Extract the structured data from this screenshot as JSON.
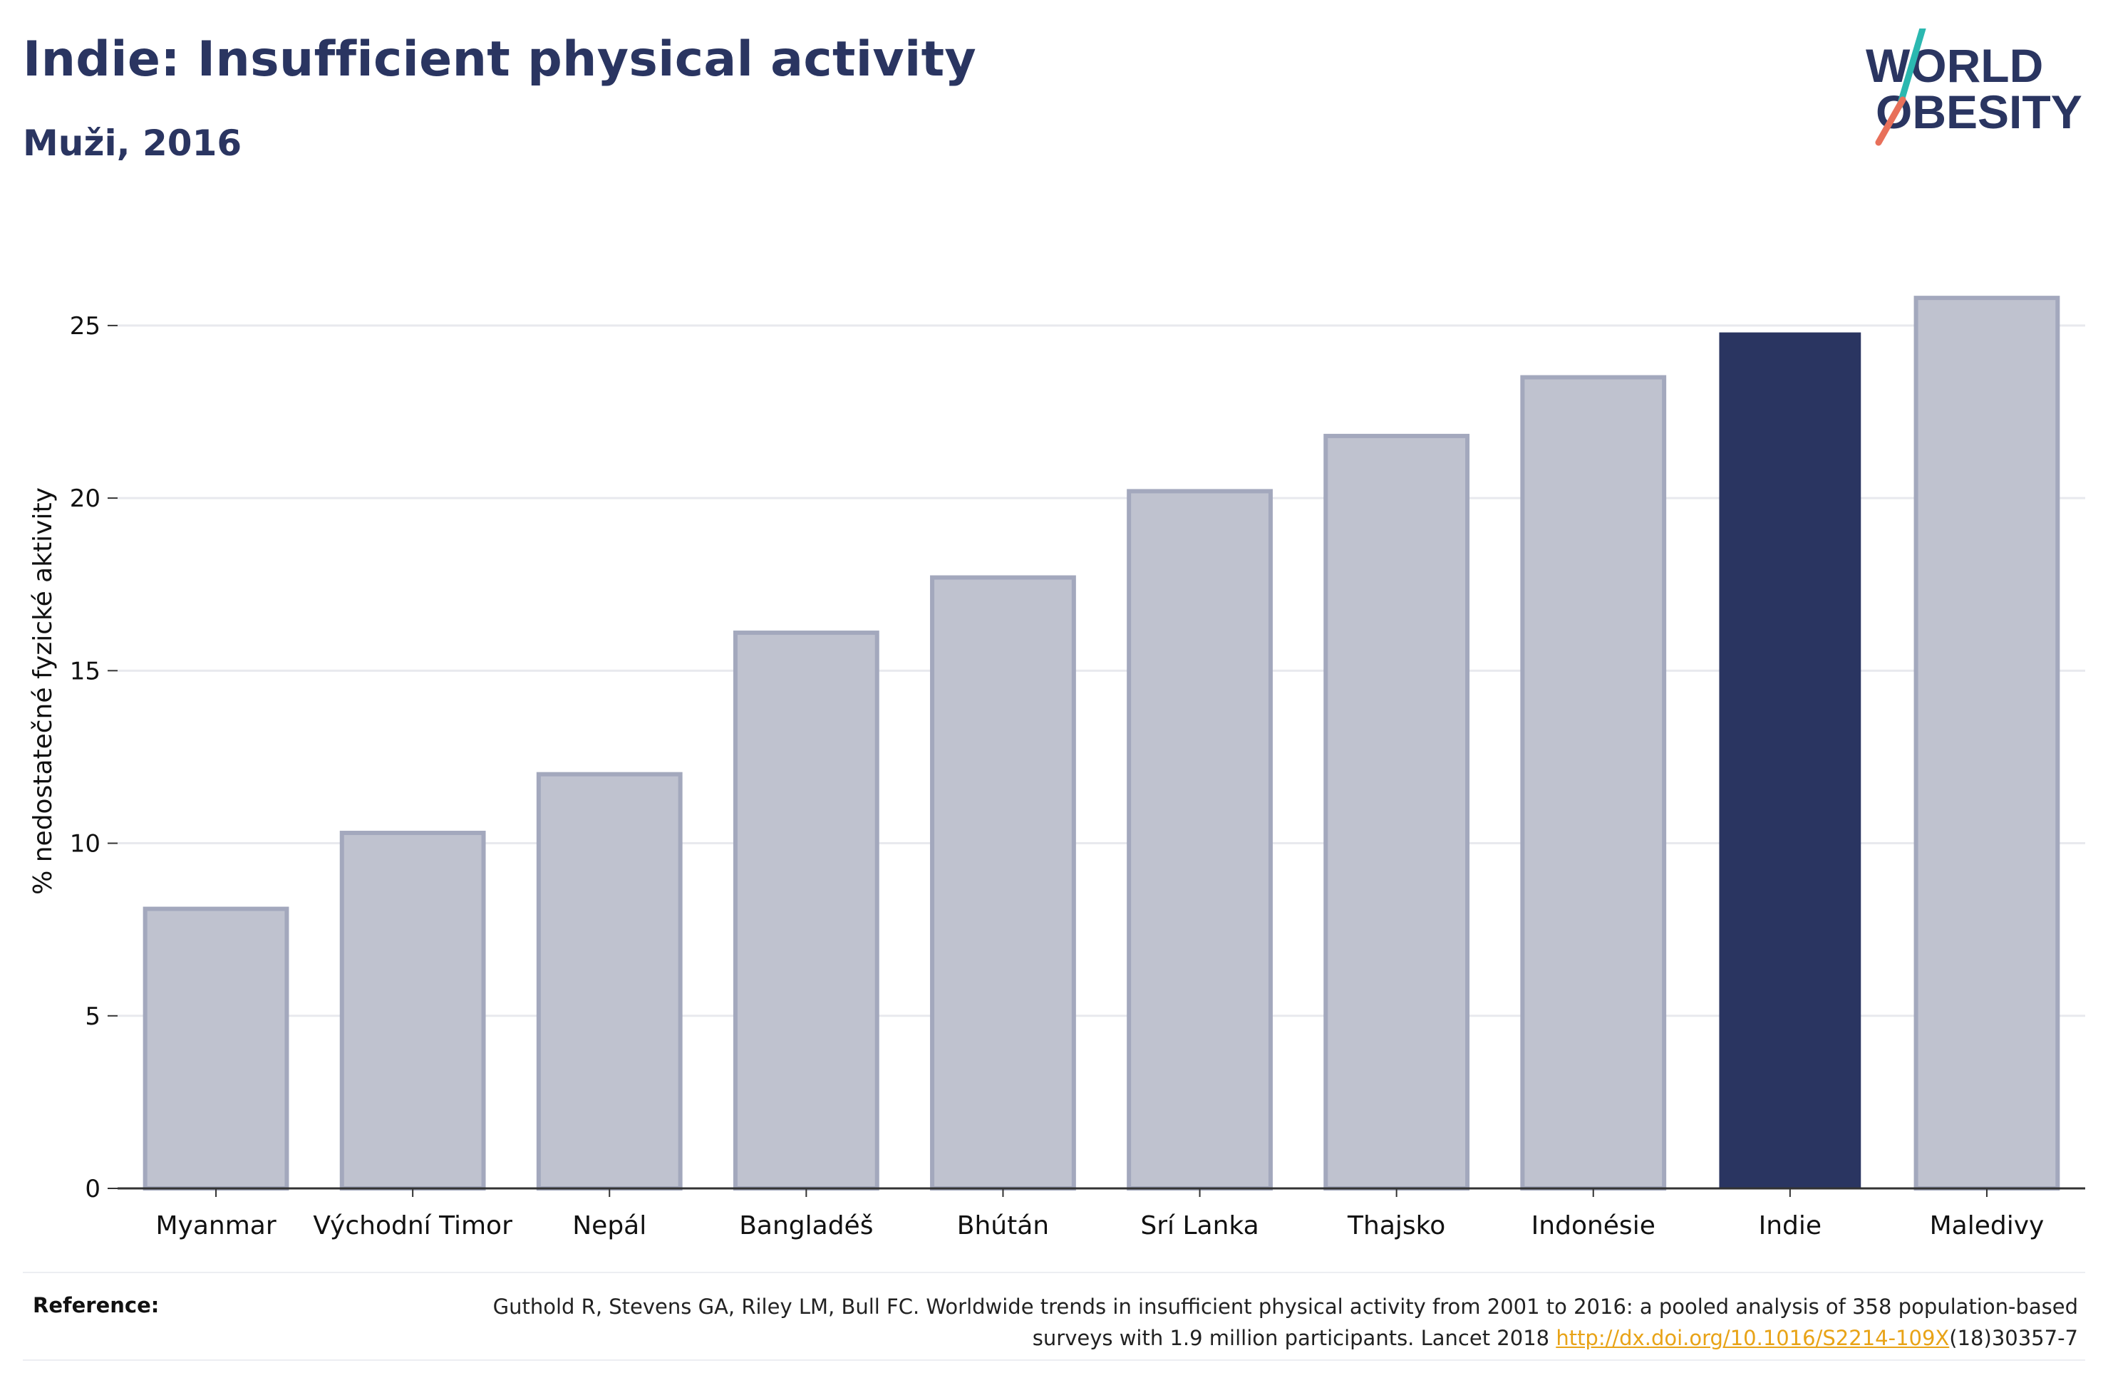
{
  "header": {
    "title": "Indie: Insufficient physical activity",
    "subtitle": "Muži, 2016"
  },
  "logo": {
    "line1": "WORLD",
    "line2": "OBESITY",
    "colors": {
      "text": "#2a3561",
      "slash_top": "#2bb8b0",
      "slash_bottom": "#e8705a"
    }
  },
  "chart_data": {
    "type": "bar",
    "title": "Indie: Insufficient physical activity",
    "subtitle": "Muži, 2016",
    "xlabel": "",
    "ylabel": "% nedostatečné fyzické aktivity",
    "ylim": [
      0,
      27
    ],
    "yticks": [
      0,
      5,
      10,
      15,
      20,
      25
    ],
    "grid": true,
    "categories": [
      "Myanmar",
      "Východní Timor",
      "Nepál",
      "Bangladéš",
      "Bhútán",
      "Srí Lanka",
      "Thajsko",
      "Indonésie",
      "Indie",
      "Maledivy"
    ],
    "values": [
      8.1,
      10.3,
      12.0,
      16.1,
      17.7,
      20.2,
      21.8,
      23.5,
      24.8,
      25.8
    ],
    "highlight": "Indie",
    "colors": {
      "default_fill": "#bfc2cf",
      "default_stroke": "#a3a8bd",
      "highlight_fill": "#2a3561",
      "grid": "#e8e9ee",
      "axis": "#333333"
    }
  },
  "reference": {
    "label": "Reference:",
    "text_before": "Guthold R, Stevens GA, Riley LM, Bull FC. Worldwide trends in insufficient physical activity from 2001 to 2016: a pooled analysis of 358 population-based surveys with 1.9 million participants. Lancet 2018 ",
    "link_text": "http://dx.doi.org/10.1016/S2214-109X",
    "text_after": "(18)30357-7"
  }
}
